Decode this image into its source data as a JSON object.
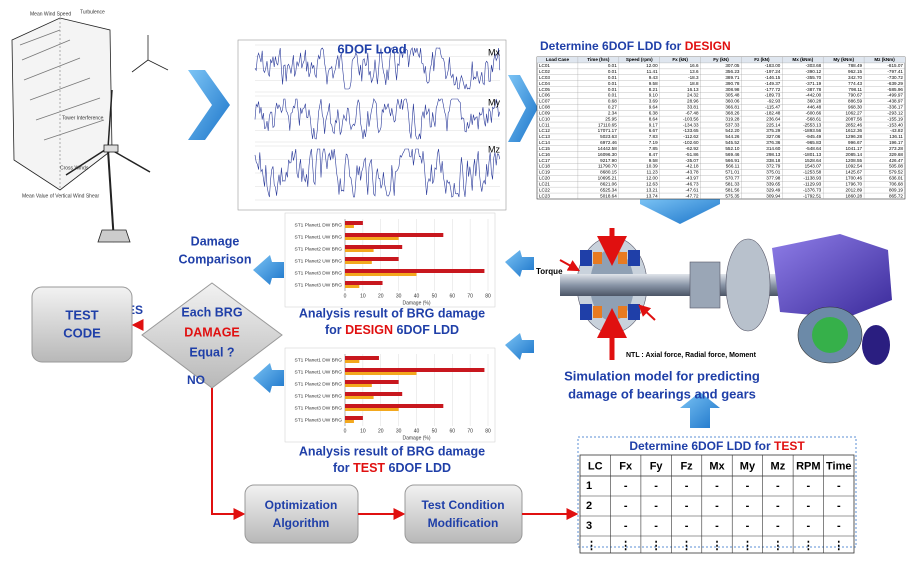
{
  "turbine_labels": [
    "Mean Wind Speed",
    "Turbulence",
    "Tower Interference",
    "Cross Winds",
    "Mean Value of Vertical Wind Shear"
  ],
  "load_plot": {
    "title": "6DOF Load",
    "labels": [
      "Mx",
      "My",
      "Mz"
    ]
  },
  "design_table": {
    "title_prefix": "Determine 6DOF LDD for ",
    "title_highlight": "DESIGN",
    "columns": [
      "Load Case",
      "Time (hrs)",
      "Speed (rpm)",
      "Fx (kN)",
      "Fy (kN)",
      "Fz (kN)",
      "Mx (kNm)",
      "My (kNm)",
      "Mz (kNm)"
    ],
    "rows": [
      [
        "LC01",
        "0.01",
        "12.00",
        "16.6",
        "307.05",
        "-183.00",
        "-303.68",
        "788.49",
        "-815.07"
      ],
      [
        "LC02",
        "0.01",
        "11.41",
        "13.6",
        "356.23",
        "-197.24",
        "-390.12",
        "962.15",
        "-797.41"
      ],
      [
        "LC03",
        "0.01",
        "9.43",
        "-18.3",
        "389.71",
        "-146.15",
        "-355.70",
        "342.70",
        "-730.72"
      ],
      [
        "LC04",
        "0.01",
        "9.58",
        "18.8",
        "390.78",
        "-149.37",
        "-371.19",
        "774.43",
        "-639.29"
      ],
      [
        "LC05",
        "0.01",
        "8.21",
        "16.13",
        "308.98",
        "-177.72",
        "-387.78",
        "798.11",
        "-585.96"
      ],
      [
        "LC06",
        "0.01",
        "9.10",
        "24.32",
        "305.48",
        "-189.73",
        "-442.00",
        "790.67",
        "-499.97"
      ],
      [
        "LC07",
        "0.68",
        "3.69",
        "28.96",
        "360.06",
        "-92.93",
        "360.28",
        "886.59",
        "-438.97"
      ],
      [
        "LC08",
        "0.27",
        "9.64",
        "33.81",
        "366.81",
        "-115.47",
        "446.48",
        "968.30",
        "-336.17"
      ],
      [
        "LC09",
        "2.34",
        "6.38",
        "-67.48",
        "368.26",
        "-182.48",
        "-600.66",
        "1062.27",
        "-293.12"
      ],
      [
        "LC10",
        "25.95",
        "8.64",
        "-103.56",
        "319.28",
        "236.64",
        "-568.61",
        "2087.56",
        "-155.19"
      ],
      [
        "LC11",
        "17110.65",
        "9.17",
        "-134.33",
        "537.33",
        "225.14",
        "-2553.13",
        "2852.46",
        "-153.40"
      ],
      [
        "LC12",
        "17071.17",
        "6.67",
        "-133.65",
        "542.20",
        "375.29",
        "-1893.56",
        "1612.36",
        "-43.82"
      ],
      [
        "LC13",
        "5023.63",
        "7.83",
        "-112.62",
        "544.26",
        "327.06",
        "-945.49",
        "1296.28",
        "136.11"
      ],
      [
        "LC14",
        "6972.46",
        "7.19",
        "-102.60",
        "545.52",
        "376.36",
        "-965.83",
        "996.67",
        "196.17"
      ],
      [
        "LC15",
        "14442.58",
        "7.85",
        "-62.92",
        "552.10",
        "314.60",
        "-548.64",
        "1041.17",
        "273.28"
      ],
      [
        "LC16",
        "16096.30",
        "8.47",
        "-51.86",
        "569.46",
        "298.13",
        "-1801.13",
        "2085.14",
        "329.68"
      ],
      [
        "LC17",
        "9217.90",
        "9.58",
        "-35.07",
        "566.91",
        "338.18",
        "1528.64",
        "1208.55",
        "426.47"
      ],
      [
        "LC18",
        "11790.70",
        "10.39",
        "-42.18",
        "566.11",
        "372.79",
        "1543.07",
        "1092.54",
        "505.08"
      ],
      [
        "LC19",
        "8680.15",
        "11.23",
        "-43.78",
        "571.01",
        "375.01",
        "-1253.58",
        "1425.67",
        "579.52"
      ],
      [
        "LC20",
        "10695.21",
        "12.00",
        "-43.97",
        "570.77",
        "377.98",
        "-1138.93",
        "1700.46",
        "636.01"
      ],
      [
        "LC21",
        "8621.06",
        "12.63",
        "-46.73",
        "581.33",
        "339.65",
        "-1129.93",
        "1796.70",
        "706.68"
      ],
      [
        "LC22",
        "6525.34",
        "13.21",
        "-47.61",
        "581.56",
        "329.49",
        "-1376.73",
        "2012.89",
        "809.19"
      ],
      [
        "LC23",
        "5018.64",
        "13.74",
        "-47.72",
        "575.35",
        "309.94",
        "-1792.51",
        "1860.28",
        "865.72"
      ]
    ]
  },
  "simulation": {
    "torque_label": "Torque",
    "ntl_label": "NTL : Axial force, Radial force, Moment",
    "caption_lines": [
      "Simulation model for predicting",
      "damage of bearings and gears"
    ]
  },
  "test_table": {
    "title_prefix": "Determine 6DOF LDD for ",
    "title_highlight": "TEST",
    "columns": [
      "LC",
      "Fx",
      "Fy",
      "Fz",
      "Mx",
      "My",
      "Mz",
      "RPM",
      "Time"
    ],
    "rows": [
      [
        "1",
        "-",
        "-",
        "-",
        "-",
        "-",
        "-",
        "-",
        "-"
      ],
      [
        "2",
        "-",
        "-",
        "-",
        "-",
        "-",
        "-",
        "-",
        "-"
      ],
      [
        "3",
        "-",
        "-",
        "-",
        "-",
        "-",
        "-",
        "-",
        "-"
      ],
      [
        "⋮",
        "⋮",
        "⋮",
        "⋮",
        "⋮",
        "⋮",
        "⋮",
        "⋮",
        "⋮"
      ]
    ]
  },
  "damage_comparison": [
    "Damage",
    "Comparison"
  ],
  "design_result": {
    "line1": "Analysis result of BRG damage",
    "line2_prefix": "for ",
    "line2_highlight": "DESIGN",
    "line2_suffix": " 6DOF LDD",
    "chart": {
      "type": "bar",
      "categories": [
        "ST1 Planet1 DW BRG",
        "ST1 Planet1 UW BRG",
        "ST1 Planet2 DW BRG",
        "ST1 Planet2 UW BRG",
        "ST1 Planet3 DW BRG",
        "ST1 Planet3 UW BRG"
      ],
      "series": [
        {
          "color": "#c8171e",
          "values": [
            10,
            55,
            32,
            30,
            78,
            21
          ]
        },
        {
          "color": "#f3a81e",
          "values": [
            5,
            30,
            16,
            15,
            40,
            8
          ]
        }
      ],
      "xlim": [
        0,
        80
      ],
      "xticks": [
        0,
        10,
        20,
        30,
        40,
        50,
        60,
        70,
        80
      ],
      "xlabel": "Damage (%)"
    }
  },
  "test_result": {
    "line1": "Analysis result of BRG damage",
    "line2_prefix": "for ",
    "line2_highlight": "TEST",
    "line2_suffix": " 6DOF LDD",
    "chart": {
      "type": "bar",
      "categories": [
        "ST1 Planet1 DW BRG",
        "ST1 Planet1 UW BRG",
        "ST1 Planet2 DW BRG",
        "ST1 Planet2 UW BRG",
        "ST1 Planet3 DW BRG",
        "ST1 Planet3 UW BRG"
      ],
      "series": [
        {
          "color": "#c8171e",
          "values": [
            19,
            78,
            30,
            32,
            55,
            10
          ]
        },
        {
          "color": "#f3a81e",
          "values": [
            8,
            40,
            15,
            16,
            30,
            5
          ]
        }
      ],
      "xlim": [
        0,
        80
      ],
      "xticks": [
        0,
        10,
        20,
        30,
        40,
        50,
        60,
        70,
        80
      ],
      "xlabel": "Damage (%)"
    }
  },
  "decision": {
    "line1": "Each BRG",
    "line2": "DAMAGE",
    "line3": "Equal ?",
    "yes": "YES",
    "no": "NO"
  },
  "test_code": [
    "TEST",
    "CODE"
  ],
  "optimization": [
    "Optimization",
    "Algorithm"
  ],
  "modification": [
    "Test Condition",
    "Modification"
  ]
}
